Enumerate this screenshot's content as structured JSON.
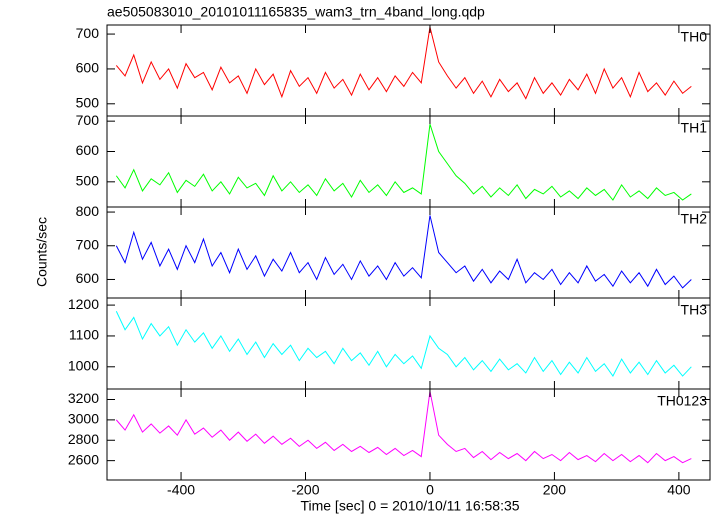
{
  "chart_data": {
    "type": "line",
    "title": "ae505083010_20101011165835_wam3_trn_4band_long.qdp",
    "x_label": "Time [sec] 0 = 2010/10/11 16:58:35",
    "y_label": "Counts/sec",
    "xlim": [
      -519,
      450
    ],
    "xticks": [
      -400,
      -200,
      0,
      200,
      400
    ],
    "x": [
      -504,
      -490,
      -476,
      -462,
      -448,
      -434,
      -420,
      -406,
      -392,
      -378,
      -364,
      -350,
      -336,
      -322,
      -308,
      -294,
      -280,
      -266,
      -252,
      -238,
      -224,
      -210,
      -196,
      -182,
      -168,
      -154,
      -140,
      -126,
      -112,
      -98,
      -84,
      -70,
      -56,
      -42,
      -28,
      -14,
      0,
      14,
      28,
      42,
      56,
      70,
      84,
      98,
      112,
      126,
      140,
      154,
      168,
      182,
      196,
      210,
      224,
      238,
      252,
      266,
      280,
      294,
      308,
      322,
      336,
      350,
      364,
      378,
      392,
      406,
      420
    ],
    "series": [
      {
        "name": "TH0",
        "color": "#ff0000",
        "ylim": [
          465,
          726
        ],
        "yticks": [
          500,
          600,
          700
        ],
        "values": [
          610,
          580,
          640,
          560,
          620,
          570,
          600,
          545,
          615,
          575,
          590,
          540,
          605,
          560,
          580,
          530,
          600,
          555,
          585,
          520,
          595,
          550,
          575,
          530,
          590,
          545,
          570,
          525,
          585,
          540,
          575,
          535,
          580,
          550,
          590,
          560,
          720,
          620,
          580,
          545,
          575,
          530,
          565,
          520,
          570,
          535,
          560,
          515,
          575,
          530,
          560,
          525,
          570,
          540,
          585,
          530,
          600,
          545,
          575,
          520,
          590,
          535,
          560,
          525,
          565,
          530,
          550
        ]
      },
      {
        "name": "TH1",
        "color": "#00ff00",
        "ylim": [
          417,
          717
        ],
        "yticks": [
          500,
          600,
          700
        ],
        "values": [
          520,
          480,
          540,
          470,
          510,
          490,
          530,
          465,
          505,
          485,
          525,
          470,
          500,
          460,
          515,
          480,
          495,
          455,
          520,
          470,
          500,
          465,
          490,
          455,
          510,
          470,
          495,
          450,
          505,
          465,
          490,
          455,
          500,
          465,
          480,
          460,
          690,
          600,
          560,
          520,
          495,
          460,
          485,
          450,
          480,
          455,
          490,
          445,
          475,
          460,
          485,
          450,
          470,
          445,
          480,
          455,
          475,
          440,
          490,
          450,
          470,
          445,
          480,
          455,
          465,
          440,
          460
        ]
      },
      {
        "name": "TH2",
        "color": "#0000ff",
        "ylim": [
          545,
          815
        ],
        "yticks": [
          600,
          700,
          800
        ],
        "values": [
          700,
          650,
          740,
          660,
          710,
          640,
          690,
          630,
          700,
          650,
          720,
          640,
          680,
          620,
          690,
          630,
          670,
          610,
          660,
          625,
          680,
          620,
          650,
          600,
          665,
          615,
          645,
          600,
          655,
          610,
          640,
          600,
          650,
          610,
          635,
          605,
          790,
          680,
          650,
          620,
          640,
          595,
          630,
          590,
          625,
          600,
          660,
          590,
          620,
          600,
          630,
          585,
          620,
          590,
          640,
          595,
          615,
          580,
          625,
          590,
          620,
          580,
          630,
          585,
          610,
          575,
          600
        ]
      },
      {
        "name": "TH3",
        "color": "#00ffff",
        "ylim": [
          928,
          1223
        ],
        "yticks": [
          1000,
          1100,
          1200
        ],
        "values": [
          1180,
          1120,
          1160,
          1090,
          1140,
          1100,
          1130,
          1070,
          1120,
          1080,
          1110,
          1060,
          1100,
          1050,
          1090,
          1040,
          1080,
          1030,
          1075,
          1040,
          1070,
          1020,
          1060,
          1030,
          1050,
          1010,
          1060,
          1020,
          1045,
          1005,
          1050,
          1000,
          1040,
          1010,
          1035,
          995,
          1100,
          1060,
          1040,
          1000,
          1030,
          990,
          1020,
          985,
          1025,
          990,
          1010,
          980,
          1030,
          985,
          1020,
          975,
          1015,
          980,
          1030,
          985,
          1010,
          970,
          1025,
          980,
          1015,
          975,
          1020,
          980,
          1005,
          970,
          1000
        ]
      },
      {
        "name": "TH0123",
        "color": "#ff00ff",
        "ylim": [
          2410,
          3303
        ],
        "yticks": [
          2600,
          2800,
          3000,
          3200
        ],
        "values": [
          3000,
          2900,
          3050,
          2880,
          2960,
          2870,
          2940,
          2850,
          3000,
          2860,
          2920,
          2830,
          2900,
          2800,
          2880,
          2790,
          2860,
          2770,
          2840,
          2760,
          2820,
          2740,
          2800,
          2720,
          2780,
          2700,
          2760,
          2690,
          2740,
          2680,
          2730,
          2660,
          2720,
          2650,
          2700,
          2640,
          3280,
          2850,
          2760,
          2690,
          2720,
          2630,
          2690,
          2610,
          2680,
          2620,
          2670,
          2600,
          2690,
          2620,
          2660,
          2600,
          2680,
          2610,
          2650,
          2590,
          2670,
          2600,
          2660,
          2590,
          2650,
          2580,
          2670,
          2600,
          2640,
          2580,
          2620
        ]
      }
    ]
  }
}
